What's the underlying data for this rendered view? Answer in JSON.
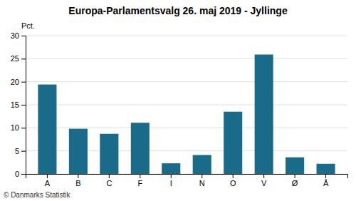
{
  "chart_data": {
    "type": "bar",
    "title": "Europa-Parlamentsvalg 26. maj 2019 - Jyllinge",
    "categories": [
      "A",
      "B",
      "C",
      "F",
      "I",
      "N",
      "O",
      "V",
      "Ø",
      "Å"
    ],
    "values": [
      19.4,
      9.8,
      8.7,
      11.1,
      2.3,
      4.1,
      13.5,
      25.9,
      3.6,
      2.2
    ],
    "color": "#1a6b8a",
    "ylabel": "Pct.",
    "ylim": [
      0,
      30
    ],
    "yticks": [
      0,
      5,
      10,
      15,
      20,
      25,
      30
    ],
    "grid": true,
    "footer": "© Danmarks Statistik"
  }
}
